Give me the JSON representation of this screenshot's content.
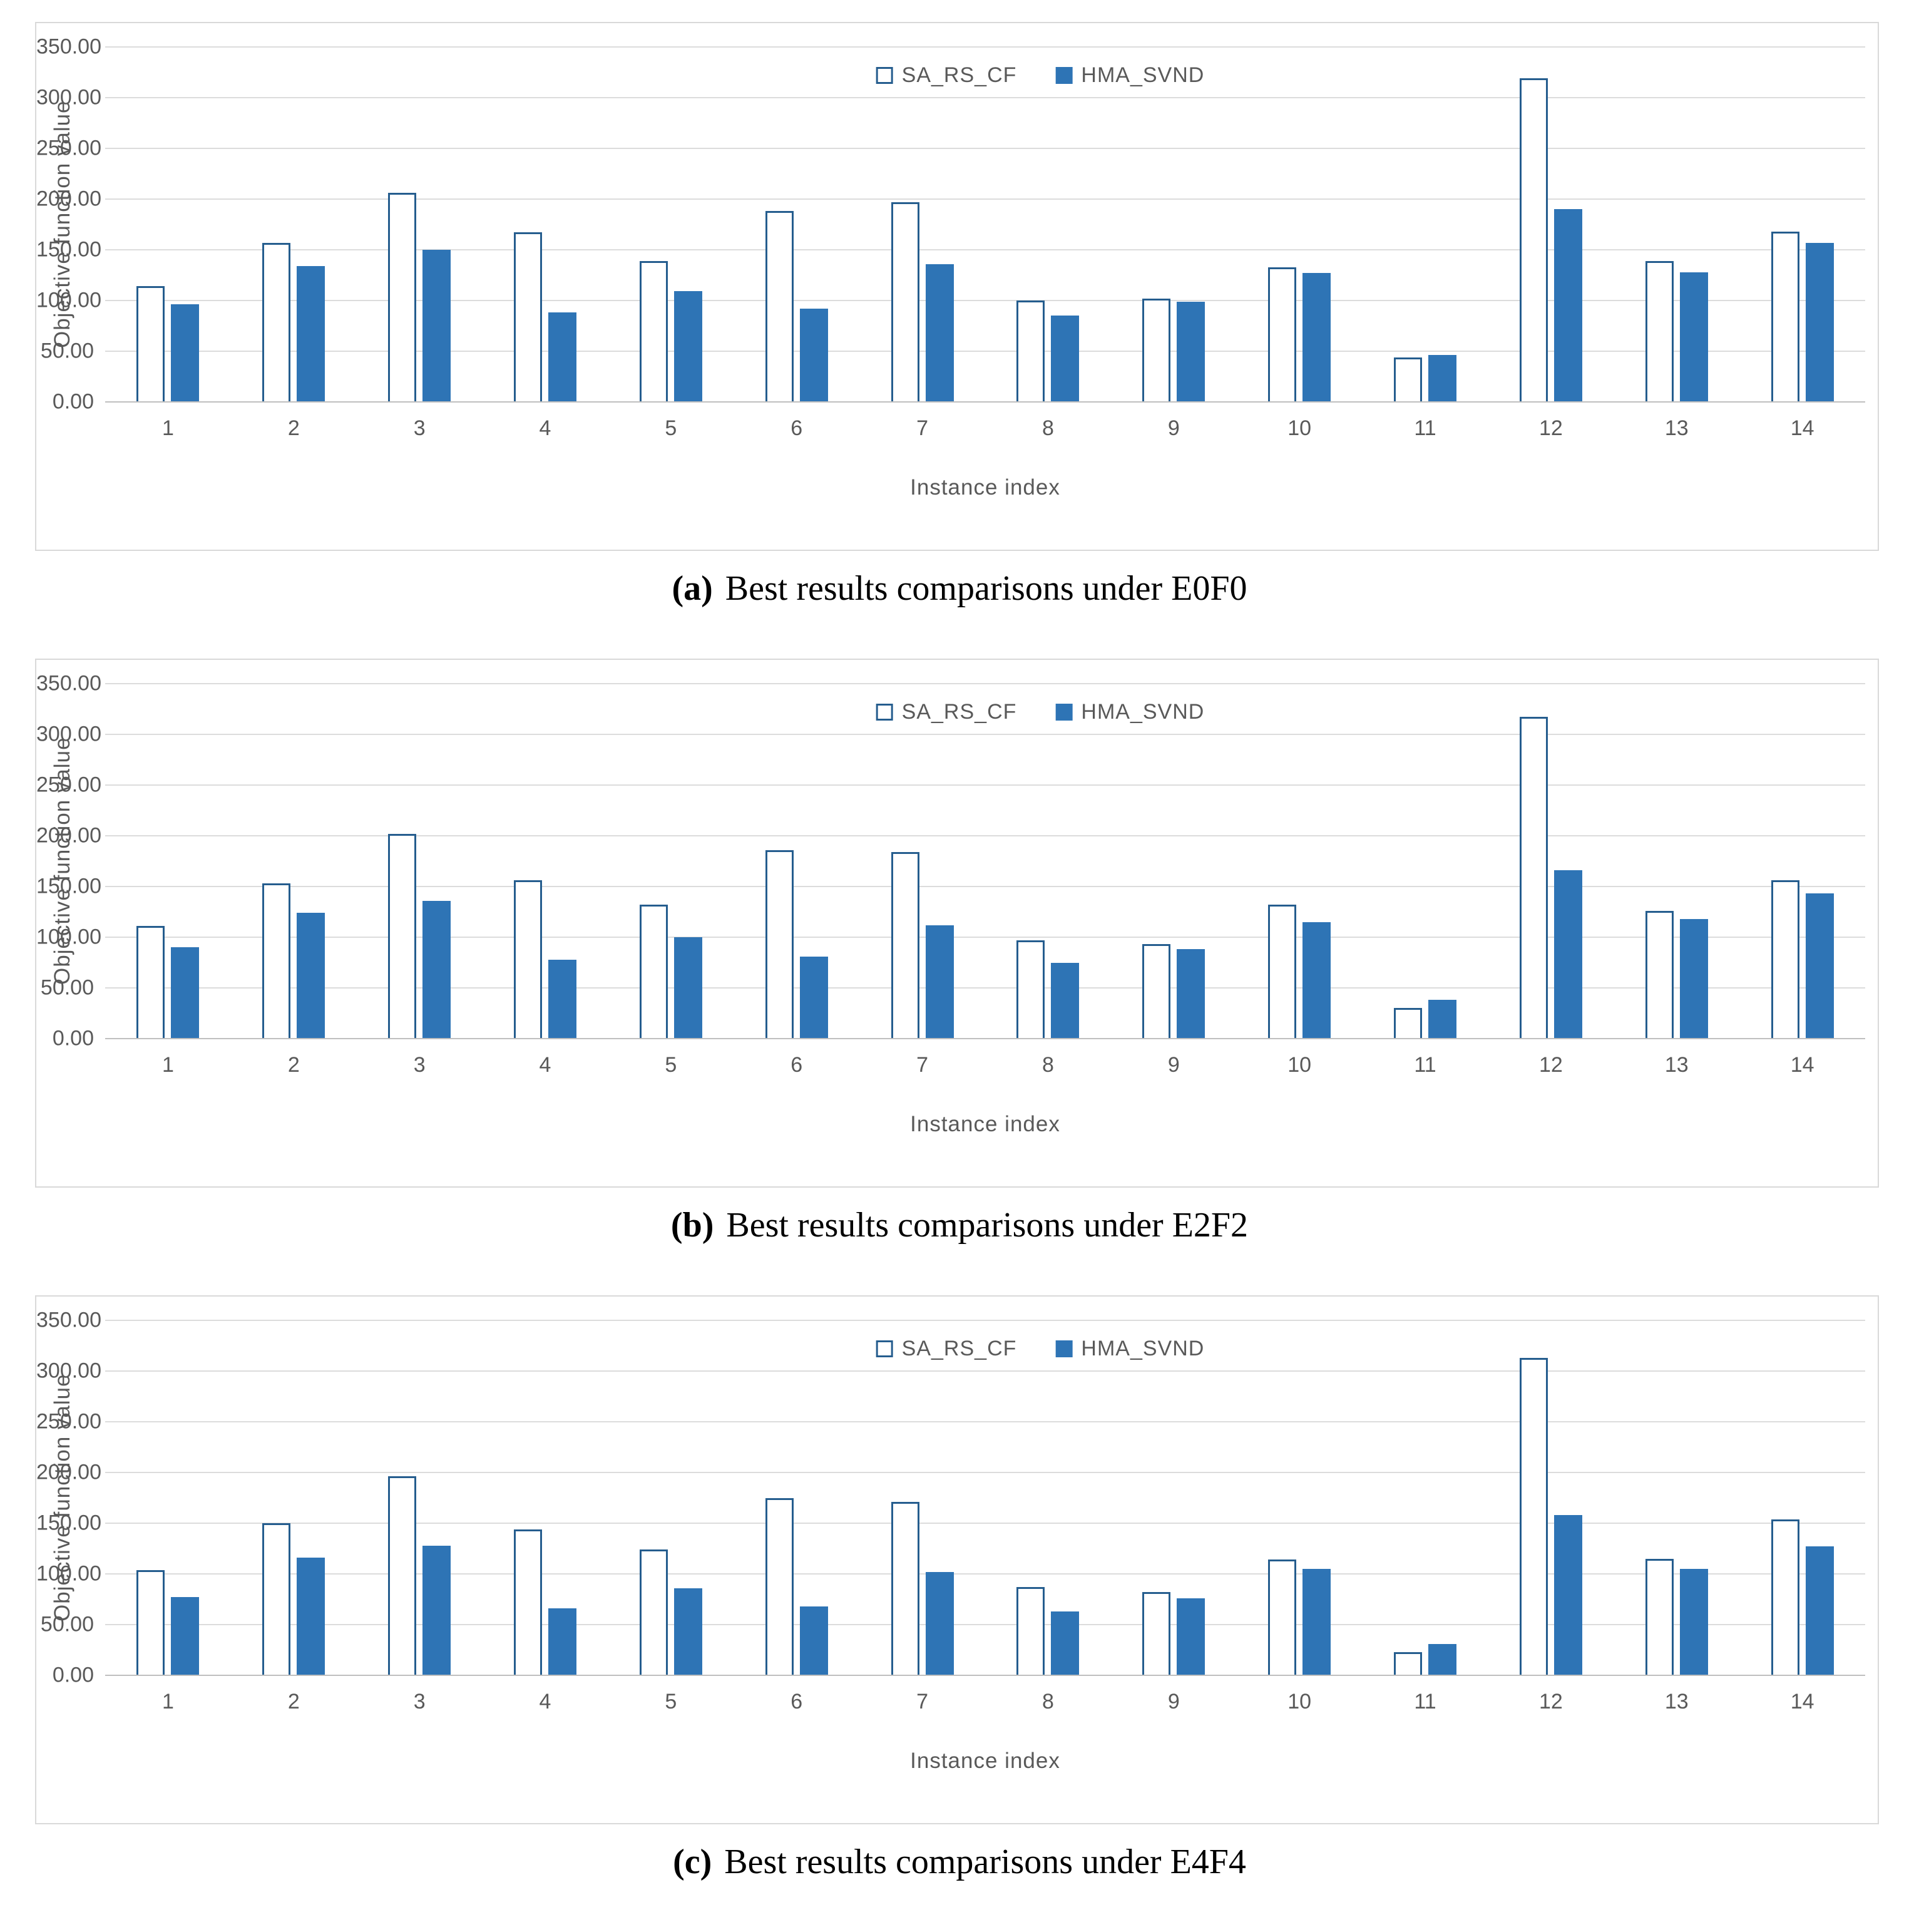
{
  "colors": {
    "bar_fill": "#2E74B5",
    "bar_border": "#255D8E",
    "grid": "#DCDCDC",
    "baseline": "#BFBFBF",
    "axis_text": "#595959",
    "panel_border": "#D9D9D9",
    "caption_color": "#000000"
  },
  "legend": {
    "series1_label": "SA_RS_CF",
    "series2_label": "HMA_SVND"
  },
  "chart_data": [
    {
      "type": "bar",
      "caption_label": "(a)",
      "caption_text": "Best results comparisons under E0F0",
      "xlabel": "Instance index",
      "ylabel": "Objective function value",
      "categories": [
        "1",
        "2",
        "3",
        "4",
        "5",
        "6",
        "7",
        "8",
        "9",
        "10",
        "11",
        "12",
        "13",
        "14"
      ],
      "series": [
        {
          "name": "SA_RS_CF",
          "style": "outlined",
          "values": [
            114,
            157,
            206,
            167,
            139,
            188,
            197,
            100,
            102,
            133,
            44,
            319,
            139,
            168
          ]
        },
        {
          "name": "HMA_SVND",
          "style": "filled",
          "values": [
            96,
            134,
            150,
            88,
            109,
            92,
            136,
            85,
            99,
            127,
            46,
            190,
            128,
            157
          ]
        }
      ],
      "ylim": [
        0,
        350
      ],
      "ytick_step": 50,
      "ytick_format": "2dp",
      "grid": true,
      "legend_position": "top-center"
    },
    {
      "type": "bar",
      "caption_label": "(b)",
      "caption_text": "Best results comparisons under E2F2",
      "xlabel": "Instance index",
      "ylabel": "Objective function value",
      "categories": [
        "1",
        "2",
        "3",
        "4",
        "5",
        "6",
        "7",
        "8",
        "9",
        "10",
        "11",
        "12",
        "13",
        "14"
      ],
      "series": [
        {
          "name": "SA_RS_CF",
          "style": "outlined",
          "values": [
            111,
            153,
            202,
            156,
            132,
            186,
            184,
            97,
            93,
            132,
            30,
            317,
            126,
            156
          ]
        },
        {
          "name": "HMA_SVND",
          "style": "filled",
          "values": [
            90,
            124,
            136,
            78,
            100,
            81,
            112,
            75,
            88,
            115,
            38,
            166,
            118,
            143
          ]
        }
      ],
      "ylim": [
        0,
        350
      ],
      "ytick_step": 50,
      "ytick_format": "2dp",
      "grid": true,
      "legend_position": "top-center"
    },
    {
      "type": "bar",
      "caption_label": "(c)",
      "caption_text": "Best results comparisons under E4F4",
      "xlabel": "Instance index",
      "ylabel": "Objective function value",
      "categories": [
        "1",
        "2",
        "3",
        "4",
        "5",
        "6",
        "7",
        "8",
        "9",
        "10",
        "11",
        "12",
        "13",
        "14"
      ],
      "series": [
        {
          "name": "SA_RS_CF",
          "style": "outlined",
          "values": [
            104,
            150,
            196,
            144,
            124,
            175,
            171,
            87,
            82,
            114,
            23,
            313,
            115,
            154
          ]
        },
        {
          "name": "HMA_SVND",
          "style": "filled",
          "values": [
            77,
            116,
            128,
            66,
            86,
            68,
            102,
            63,
            76,
            105,
            31,
            158,
            105,
            127
          ]
        }
      ],
      "ylim": [
        0,
        350
      ],
      "ytick_step": 50,
      "ytick_format": "2dp",
      "grid": true,
      "legend_position": "top-center"
    }
  ]
}
